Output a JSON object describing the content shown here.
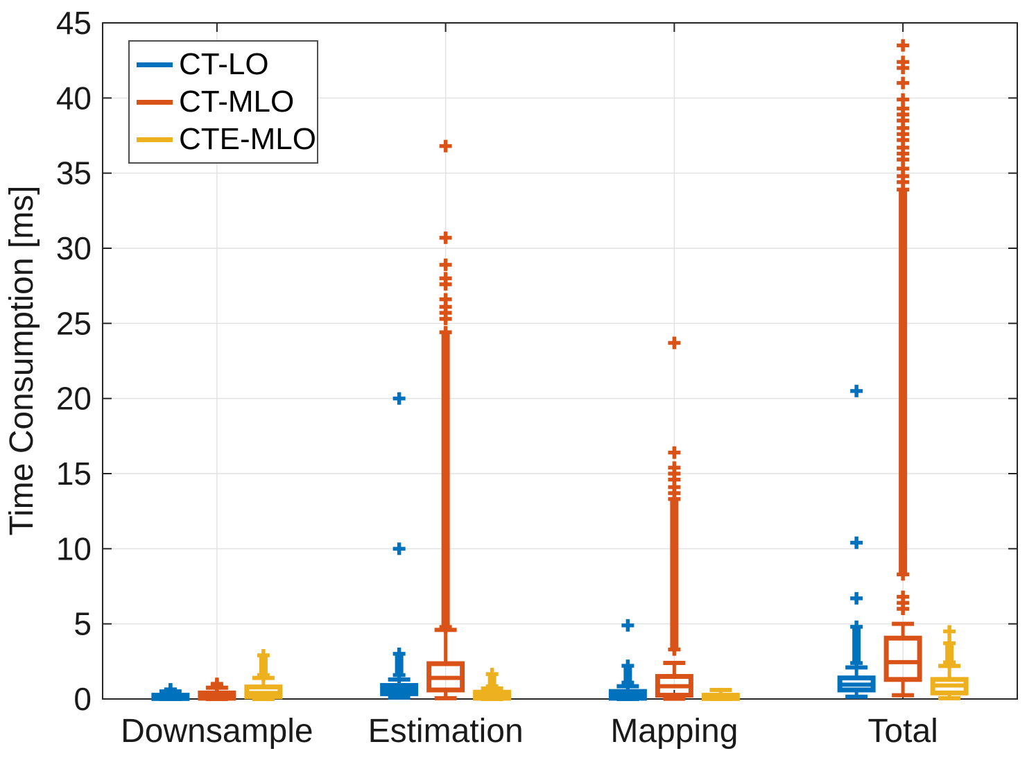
{
  "chart_data": {
    "type": "boxplot",
    "title": "",
    "xlabel": "",
    "ylabel": "Time Consumption [ms]",
    "ylim": [
      0,
      45
    ],
    "yticks": [
      0,
      5,
      10,
      15,
      20,
      25,
      30,
      35,
      40,
      45
    ],
    "categories": [
      "Downsample",
      "Estimation",
      "Mapping",
      "Total"
    ],
    "grid": true,
    "marker": "+",
    "legend": {
      "position": "top-left"
    },
    "colors": {
      "axis": "#262626",
      "grid": "#e2e2e2",
      "text": "#1a1a1a"
    },
    "series": [
      {
        "name": "CT-LO",
        "color": "#0072BD",
        "boxes": [
          {
            "category": "Downsample",
            "q1": 0.03,
            "median": 0.12,
            "q3": 0.25,
            "whisker_low": 0.0,
            "whisker_high": 0.5,
            "outlier_range": [
              0.55,
              0.7
            ],
            "outliers": []
          },
          {
            "category": "Estimation",
            "q1": 0.35,
            "median": 0.6,
            "q3": 0.9,
            "whisker_low": 0.1,
            "whisker_high": 1.3,
            "outlier_range": [
              1.5,
              3.1
            ],
            "outliers": [
              10.0,
              20.0
            ]
          },
          {
            "category": "Mapping",
            "q1": 0.05,
            "median": 0.25,
            "q3": 0.5,
            "whisker_low": 0.0,
            "whisker_high": 0.85,
            "outlier_range": [
              1.0,
              2.3
            ],
            "outliers": [
              4.9
            ]
          },
          {
            "category": "Total",
            "q1": 0.6,
            "median": 0.95,
            "q3": 1.4,
            "whisker_low": 0.15,
            "whisker_high": 2.1,
            "outlier_range": [
              2.3,
              4.9
            ],
            "outliers": [
              6.7,
              10.4,
              20.5
            ]
          }
        ]
      },
      {
        "name": "CT-MLO",
        "color": "#D95319",
        "boxes": [
          {
            "category": "Downsample",
            "q1": 0.05,
            "median": 0.18,
            "q3": 0.4,
            "whisker_low": 0.0,
            "whisker_high": 0.75,
            "outlier_range": [
              0.8,
              1.1
            ],
            "outliers": []
          },
          {
            "category": "Estimation",
            "q1": 0.6,
            "median": 1.4,
            "q3": 2.35,
            "whisker_low": 0.05,
            "whisker_high": 4.6,
            "outlier_range": [
              4.7,
              24.5
            ],
            "outliers": [
              25.3,
              25.7,
              26.1,
              26.6,
              27.6,
              28.0,
              28.9,
              30.7,
              36.8
            ]
          },
          {
            "category": "Mapping",
            "q1": 0.25,
            "median": 0.85,
            "q3": 1.5,
            "whisker_low": 0.02,
            "whisker_high": 2.4,
            "outlier_range": [
              3.2,
              13.4
            ],
            "outliers": [
              13.7,
              14.1,
              14.6,
              15.0,
              15.4,
              16.4,
              23.7
            ]
          },
          {
            "category": "Total",
            "q1": 1.3,
            "median": 2.45,
            "q3": 4.05,
            "whisker_low": 0.25,
            "whisker_high": 5.0,
            "outlier_range": [
              8.2,
              34.0
            ],
            "outliers": [
              6.0,
              6.4,
              6.8,
              34.4,
              34.8,
              35.3,
              35.9,
              36.3,
              36.7,
              37.2,
              37.6,
              38.0,
              38.5,
              38.9,
              39.3,
              39.9,
              41.0,
              42.0,
              42.4,
              43.5
            ]
          }
        ]
      },
      {
        "name": "CTE-MLO",
        "color": "#EDB120",
        "boxes": [
          {
            "category": "Downsample",
            "q1": 0.15,
            "median": 0.4,
            "q3": 0.8,
            "whisker_low": 0.0,
            "whisker_high": 1.4,
            "outlier_range": [
              1.5,
              3.0
            ],
            "outliers": []
          },
          {
            "category": "Estimation",
            "q1": 0.05,
            "median": 0.2,
            "q3": 0.45,
            "whisker_low": 0.0,
            "whisker_high": 0.7,
            "outlier_range": [
              0.75,
              1.75
            ],
            "outliers": []
          },
          {
            "category": "Mapping",
            "q1": 0.03,
            "median": 0.12,
            "q3": 0.25,
            "whisker_low": 0.0,
            "whisker_high": 0.6,
            "outlier_range": null,
            "outliers": []
          },
          {
            "category": "Total",
            "q1": 0.4,
            "median": 0.9,
            "q3": 1.3,
            "whisker_low": 0.05,
            "whisker_high": 2.2,
            "outlier_range": [
              2.35,
              3.8
            ],
            "outliers": [
              4.5
            ]
          }
        ]
      }
    ]
  }
}
